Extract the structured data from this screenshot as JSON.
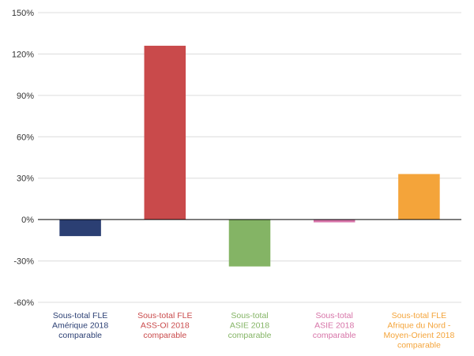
{
  "chart_data": {
    "type": "bar",
    "categories": [
      [
        "Sous-total FLE",
        "Amérique 2018",
        "comparable"
      ],
      [
        "Sous-total FLE",
        "ASS-OI 2018",
        "comparable"
      ],
      [
        "Sous-total",
        "ASIE 2018",
        "comparable"
      ],
      [
        "Sous-total",
        "ASIE 2018",
        "comparable"
      ],
      [
        "Sous-total FLE",
        "Afrique du Nord -",
        "Moyen-Orient 2018",
        "comparable"
      ]
    ],
    "values": [
      -12,
      126,
      -34,
      -2,
      33
    ],
    "colors": [
      "#2b3f73",
      "#c94a4b",
      "#84b465",
      "#d774a8",
      "#f4a43a"
    ],
    "y_ticks": [
      "150%",
      "120%",
      "90%",
      "60%",
      "30%",
      "0%",
      "-30%",
      "-60%"
    ],
    "y_tick_values": [
      150,
      120,
      90,
      60,
      30,
      0,
      -30,
      -60
    ],
    "ylim": [
      -60,
      150
    ],
    "unit": "%",
    "title": "",
    "xlabel": "",
    "ylabel": "",
    "grid": true
  }
}
